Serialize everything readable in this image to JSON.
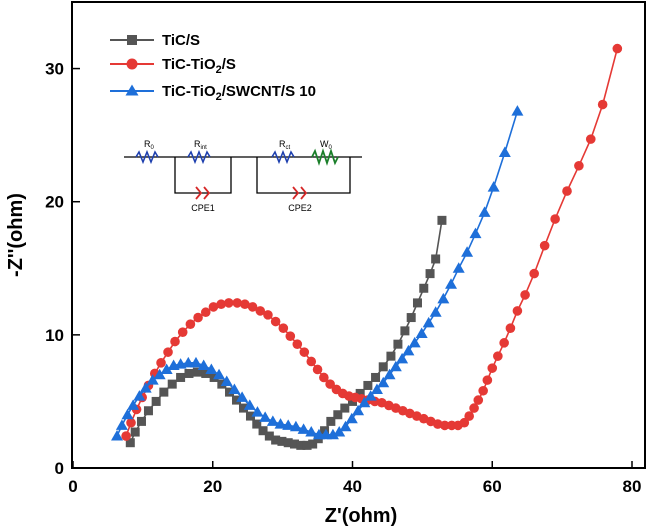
{
  "chart_data": {
    "type": "line",
    "xlabel": "Z'(ohm)",
    "ylabel": "-Z''(ohm)",
    "xlim": [
      0,
      80
    ],
    "ylim": [
      0,
      35
    ],
    "xticks": [
      0,
      20,
      40,
      60,
      80
    ],
    "yticks": [
      0,
      10,
      20,
      30
    ],
    "grid": false,
    "legend_position": "top-left",
    "series": [
      {
        "name": "TiC/S",
        "color": "#555555",
        "marker": "square",
        "x": [
          8.2,
          8.9,
          9.8,
          10.8,
          11.9,
          13.0,
          14.2,
          15.4,
          16.6,
          17.8,
          19.0,
          20.2,
          21.3,
          22.4,
          23.4,
          24.4,
          25.4,
          26.3,
          27.2,
          28.1,
          29.0,
          29.9,
          30.8,
          31.7,
          32.6,
          33.5,
          34.3,
          35.1,
          36.0,
          36.9,
          37.9,
          38.9,
          40.0,
          41.1,
          42.2,
          43.3,
          44.4,
          45.5,
          46.5,
          47.5,
          48.4,
          49.3,
          50.2,
          51.1,
          51.9,
          52.8
        ],
        "y": [
          1.9,
          2.7,
          3.5,
          4.3,
          5.0,
          5.7,
          6.3,
          6.8,
          7.1,
          7.2,
          7.1,
          6.8,
          6.3,
          5.7,
          5.1,
          4.5,
          3.9,
          3.3,
          2.8,
          2.4,
          2.1,
          2.0,
          1.9,
          1.8,
          1.7,
          1.7,
          1.8,
          2.2,
          2.8,
          3.5,
          4.0,
          4.5,
          5.0,
          5.6,
          6.2,
          6.8,
          7.6,
          8.4,
          9.3,
          10.3,
          11.3,
          12.4,
          13.5,
          14.6,
          15.7,
          18.6
        ]
      },
      {
        "name": "TiC-TiO2/S",
        "color": "#e53935",
        "marker": "circle",
        "x": [
          7.6,
          8.3,
          9.1,
          9.9,
          10.8,
          11.7,
          12.6,
          13.6,
          14.6,
          15.7,
          16.8,
          17.9,
          19.0,
          20.1,
          21.2,
          22.3,
          23.5,
          24.6,
          25.7,
          26.8,
          27.9,
          29.0,
          30.1,
          31.1,
          32.1,
          33.1,
          34.1,
          35.0,
          35.9,
          36.8,
          37.7,
          38.6,
          39.5,
          40.4,
          41.3,
          42.2,
          43.2,
          44.2,
          45.2,
          46.2,
          47.2,
          48.2,
          49.2,
          50.2,
          51.2,
          52.2,
          53.2,
          54.2,
          55.1,
          56.0,
          56.7,
          57.4,
          58.0,
          58.7,
          59.3,
          60.0,
          60.8,
          61.7,
          62.6,
          63.6,
          64.7,
          66.0,
          67.5,
          69.0,
          70.7,
          72.4,
          74.1,
          75.8,
          77.9
        ],
        "y": [
          2.4,
          3.4,
          4.4,
          5.3,
          6.2,
          7.1,
          7.9,
          8.7,
          9.5,
          10.2,
          10.8,
          11.3,
          11.7,
          12.1,
          12.3,
          12.4,
          12.4,
          12.3,
          12.1,
          11.8,
          11.5,
          11.0,
          10.5,
          9.9,
          9.3,
          8.7,
          8.0,
          7.4,
          6.8,
          6.3,
          5.9,
          5.6,
          5.4,
          5.3,
          5.2,
          5.1,
          5.0,
          4.9,
          4.7,
          4.5,
          4.3,
          4.1,
          3.9,
          3.7,
          3.5,
          3.3,
          3.2,
          3.2,
          3.2,
          3.4,
          3.9,
          4.5,
          5.1,
          5.8,
          6.6,
          7.5,
          8.4,
          9.4,
          10.5,
          11.8,
          13.0,
          14.6,
          16.7,
          18.7,
          20.8,
          22.7,
          24.7,
          27.3,
          31.5
        ]
      },
      {
        "name": "TiC-TiO2/SWCNT/S 10",
        "color": "#1e6fd9",
        "marker": "triangle",
        "x": [
          6.3,
          7.0,
          7.8,
          8.6,
          9.5,
          10.4,
          11.4,
          12.4,
          13.4,
          14.4,
          15.4,
          16.5,
          17.6,
          18.7,
          19.8,
          20.9,
          22.0,
          23.1,
          24.2,
          25.3,
          26.4,
          27.5,
          28.6,
          29.7,
          30.8,
          31.9,
          33.0,
          34.1,
          35.2,
          36.2,
          37.2,
          38.1,
          39.0,
          39.9,
          40.8,
          41.7,
          42.6,
          43.5,
          44.4,
          45.3,
          46.2,
          47.1,
          48.0,
          48.9,
          49.9,
          50.9,
          51.9,
          53.0,
          54.1,
          55.2,
          56.4,
          57.6,
          58.9,
          60.2,
          61.8,
          63.6
        ],
        "y": [
          2.4,
          3.2,
          4.0,
          4.7,
          5.4,
          6.0,
          6.6,
          7.0,
          7.4,
          7.7,
          7.8,
          7.9,
          7.9,
          7.7,
          7.4,
          7.0,
          6.5,
          5.9,
          5.3,
          4.7,
          4.2,
          3.8,
          3.5,
          3.3,
          3.2,
          3.1,
          2.9,
          2.7,
          2.5,
          2.5,
          2.5,
          2.7,
          3.1,
          3.7,
          4.3,
          4.9,
          5.4,
          5.9,
          6.4,
          7.0,
          7.6,
          8.2,
          8.8,
          9.4,
          10.1,
          10.9,
          11.7,
          12.7,
          13.8,
          15.0,
          16.2,
          17.6,
          19.2,
          21.1,
          23.7,
          26.8
        ]
      }
    ]
  },
  "legend": [
    {
      "base": "TiC/S",
      "sub": "",
      "tail": ""
    },
    {
      "base": "TiC-TiO",
      "sub": "2",
      "tail": "/S"
    },
    {
      "base": "TiC-TiO",
      "sub": "2",
      "tail": "/SWCNT/S 10"
    }
  ],
  "circuit": {
    "r0": {
      "main": "R",
      "sub": "0"
    },
    "rint": {
      "main": "R",
      "sub": "int"
    },
    "rct": {
      "main": "R",
      "sub": "ct"
    },
    "w0": {
      "main": "W",
      "sub": "0"
    },
    "cpe1": "CPE1",
    "cpe2": "CPE2"
  }
}
